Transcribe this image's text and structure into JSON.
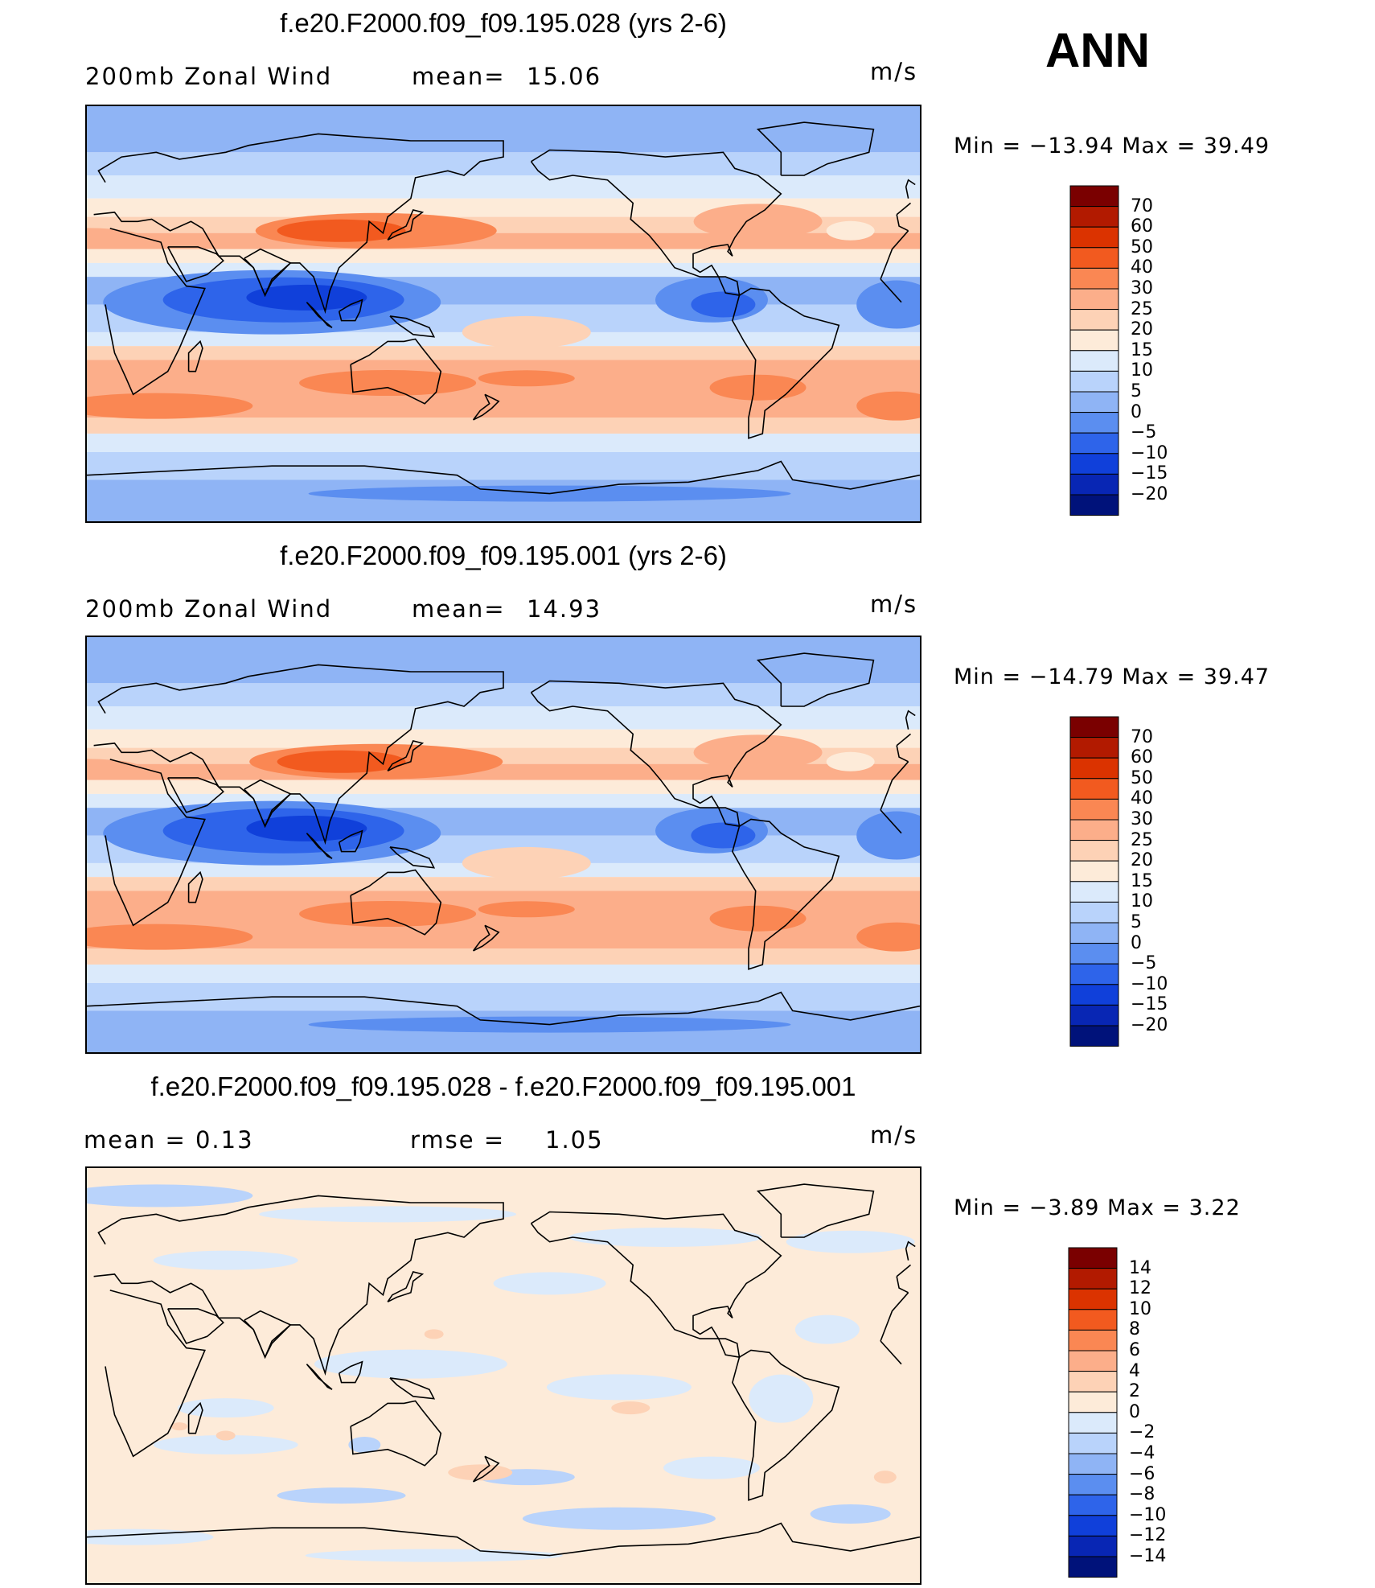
{
  "season": "ANN",
  "panels": [
    {
      "title": "f.e20.F2000.f09_f09.195.028 (yrs 2-6)",
      "left_label": "200mb  Zonal  Wind",
      "stat_label": "mean=",
      "stat_value": "15.06",
      "units": "m/s",
      "min_label": "Min  =  −13.94  Max  =    39.49",
      "colorbar": {
        "labels": [
          "70",
          "60",
          "50",
          "40",
          "30",
          "25",
          "20",
          "15",
          "10",
          "5",
          "0",
          "−5",
          "−10",
          "−15",
          "−20"
        ],
        "colors": [
          "#7a0000",
          "#b21a00",
          "#db3300",
          "#f25a1f",
          "#fa8753",
          "#fcae8a",
          "#fdd2b6",
          "#fdebd9",
          "#dbeafb",
          "#b9d3fb",
          "#8fb4f5",
          "#5b8ef0",
          "#2e64ea",
          "#1040da",
          "#0826b4",
          "#00127a"
        ]
      },
      "chart_data": {
        "type": "heatmap",
        "title": "f.e20.F2000.f09_f09.195.028 (yrs 2-6)",
        "variable": "200mb  Zonal  Wind",
        "units": "m/s",
        "mean": 15.06,
        "min": -13.94,
        "max": 39.49,
        "levels": [
          -20,
          -15,
          -10,
          -5,
          0,
          5,
          10,
          15,
          20,
          25,
          30,
          40,
          50,
          60,
          70
        ]
      }
    },
    {
      "title": "f.e20.F2000.f09_f09.195.001 (yrs 2-6)",
      "left_label": "200mb  Zonal  Wind",
      "stat_label": "mean=",
      "stat_value": "14.93",
      "units": "m/s",
      "min_label": "Min  =  −14.79  Max  =    39.47",
      "colorbar": {
        "labels": [
          "70",
          "60",
          "50",
          "40",
          "30",
          "25",
          "20",
          "15",
          "10",
          "5",
          "0",
          "−5",
          "−10",
          "−15",
          "−20"
        ],
        "colors": [
          "#7a0000",
          "#b21a00",
          "#db3300",
          "#f25a1f",
          "#fa8753",
          "#fcae8a",
          "#fdd2b6",
          "#fdebd9",
          "#dbeafb",
          "#b9d3fb",
          "#8fb4f5",
          "#5b8ef0",
          "#2e64ea",
          "#1040da",
          "#0826b4",
          "#00127a"
        ]
      },
      "chart_data": {
        "type": "heatmap",
        "title": "f.e20.F2000.f09_f09.195.001 (yrs 2-6)",
        "variable": "200mb  Zonal  Wind",
        "units": "m/s",
        "mean": 14.93,
        "min": -14.79,
        "max": 39.47,
        "levels": [
          -20,
          -15,
          -10,
          -5,
          0,
          5,
          10,
          15,
          20,
          25,
          30,
          40,
          50,
          60,
          70
        ]
      }
    },
    {
      "title": "f.e20.F2000.f09_f09.195.028 - f.e20.F2000.f09_f09.195.001",
      "left_label": "mean  =      0.13",
      "stat_label": "rmse  =",
      "stat_value": "1.05",
      "units": "m/s",
      "min_label": "Min  =    −3.89  Max  =      3.22",
      "colorbar": {
        "labels": [
          "14",
          "12",
          "10",
          "8",
          "6",
          "4",
          "2",
          "0",
          "−2",
          "−4",
          "−6",
          "−8",
          "−10",
          "−12",
          "−14"
        ],
        "colors": [
          "#7a0000",
          "#b21a00",
          "#db3300",
          "#f25a1f",
          "#fa8753",
          "#fcae8a",
          "#fdd2b6",
          "#fdebd9",
          "#dbeafb",
          "#b9d3fb",
          "#8fb4f5",
          "#5b8ef0",
          "#2e64ea",
          "#1040da",
          "#0826b4",
          "#00127a"
        ]
      },
      "chart_data": {
        "type": "heatmap",
        "title": "f.e20.F2000.f09_f09.195.028 - f.e20.F2000.f09_f09.195.001",
        "units": "m/s",
        "mean": 0.13,
        "rmse": 1.05,
        "min": -3.89,
        "max": 3.22,
        "levels": [
          -14,
          -12,
          -10,
          -8,
          -6,
          -4,
          -2,
          0,
          2,
          4,
          6,
          8,
          10,
          12,
          14
        ]
      }
    }
  ]
}
